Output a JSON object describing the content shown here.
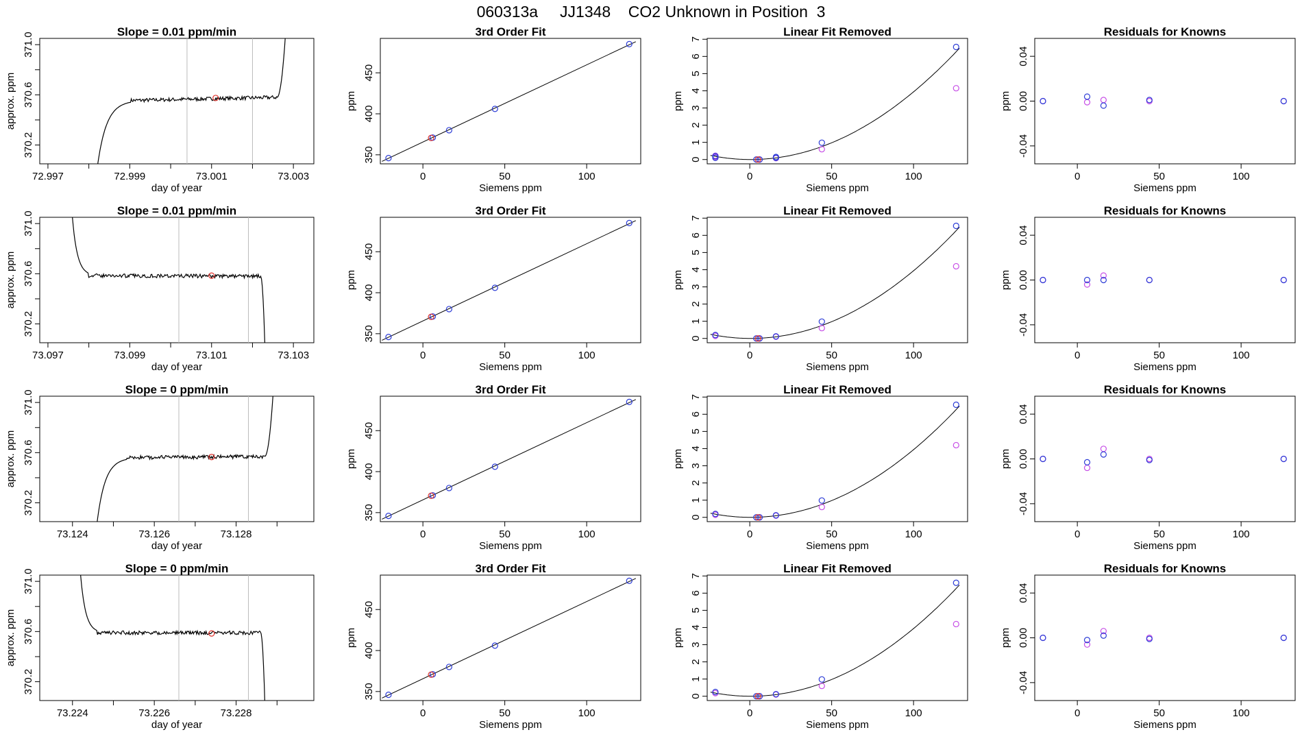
{
  "page": {
    "title": "060313a     JJ1348    CO2 Unknown in Position  3"
  },
  "colors": {
    "known": "#2b3bd6",
    "unknown": "#e0302a",
    "residual_alt": "#c64ce6",
    "line": "#000000",
    "vline": "#bbbbbb"
  },
  "chart_data": [
    {
      "panel": "r1c1",
      "type": "line",
      "title": "Slope =  0.01  ppm/min",
      "xlabel": "day of year",
      "ylabel": "approx. ppm",
      "xlim": [
        72.9968,
        73.0035
      ],
      "ylim": [
        370.05,
        371.05
      ],
      "xticks": [
        72.997,
        72.998,
        72.999,
        73.0,
        73.001,
        73.002,
        73.003
      ],
      "xticklabels": [
        "72.997",
        "",
        "72.999",
        "",
        "73.001",
        "",
        "73.003"
      ],
      "yticks": [
        370.2,
        370.4,
        370.6,
        370.8,
        371.0
      ],
      "yticklabels": [
        "370.2",
        "",
        "370.6",
        "",
        "371.0"
      ],
      "vlines": [
        73.0004,
        73.002
      ],
      "trace": {
        "shape": "rise",
        "x_start": 72.9981,
        "x_settle": 72.999,
        "level": 370.555,
        "level_end": 370.58,
        "x_end": 73.0026,
        "x_exit": 73.0028,
        "exit_y": 371.05
      },
      "marker": {
        "x": 73.0011,
        "y": 370.575,
        "color": "unknown"
      }
    },
    {
      "panel": "r2c1",
      "type": "line",
      "title": "Slope =  0.01  ppm/min",
      "xlabel": "day of year",
      "ylabel": "approx. ppm",
      "xlim": [
        73.0968,
        73.1035
      ],
      "ylim": [
        370.05,
        371.05
      ],
      "xticks": [
        73.097,
        73.098,
        73.099,
        73.1,
        73.101,
        73.102,
        73.103
      ],
      "xticklabels": [
        "73.097",
        "",
        "73.099",
        "",
        "73.101",
        "",
        "73.103"
      ],
      "yticks": [
        370.2,
        370.4,
        370.6,
        370.8,
        371.0
      ],
      "yticklabels": [
        "370.2",
        "",
        "370.6",
        "",
        "371.0"
      ],
      "vlines": [
        73.1002,
        73.1019
      ],
      "trace": {
        "shape": "fall",
        "x_start": 73.0975,
        "x_settle": 73.098,
        "level": 370.585,
        "level_end": 370.58,
        "x_end": 73.1022,
        "x_exit": 73.1023,
        "exit_y": 370.05
      },
      "marker": {
        "x": 73.101,
        "y": 370.585,
        "color": "unknown"
      }
    },
    {
      "panel": "r3c1",
      "type": "line",
      "title": "Slope =  0  ppm/min",
      "xlabel": "day of year",
      "ylabel": "approx. ppm",
      "xlim": [
        73.1232,
        73.1299
      ],
      "ylim": [
        370.05,
        371.05
      ],
      "xticks": [
        73.124,
        73.125,
        73.126,
        73.127,
        73.128,
        73.129
      ],
      "xticklabels": [
        "73.124",
        "",
        "73.126",
        "",
        "73.128",
        ""
      ],
      "yticks": [
        370.2,
        370.4,
        370.6,
        370.8,
        371.0
      ],
      "yticklabels": [
        "370.2",
        "",
        "370.6",
        "",
        "371.0"
      ],
      "vlines": [
        73.1266,
        73.1283
      ],
      "trace": {
        "shape": "rise",
        "x_start": 73.1245,
        "x_settle": 73.1253,
        "level": 370.56,
        "level_end": 370.57,
        "x_end": 73.1287,
        "x_exit": 73.1289,
        "exit_y": 371.05
      },
      "marker": {
        "x": 73.1274,
        "y": 370.565,
        "color": "unknown"
      }
    },
    {
      "panel": "r4c1",
      "type": "line",
      "title": "Slope =  0  ppm/min",
      "xlabel": "day of year",
      "ylabel": "approx. ppm",
      "xlim": [
        73.2232,
        73.2299
      ],
      "ylim": [
        370.05,
        371.05
      ],
      "xticks": [
        73.224,
        73.225,
        73.226,
        73.227,
        73.228,
        73.229
      ],
      "xticklabels": [
        "73.224",
        "",
        "73.226",
        "",
        "73.228",
        ""
      ],
      "yticks": [
        370.2,
        370.4,
        370.6,
        370.8,
        371.0
      ],
      "yticklabels": [
        "370.2",
        "",
        "370.6",
        "",
        "371.0"
      ],
      "vlines": [
        73.2266,
        73.2283
      ],
      "trace": {
        "shape": "fall",
        "x_start": 73.2241,
        "x_settle": 73.2246,
        "level": 370.59,
        "level_end": 370.59,
        "x_end": 73.2286,
        "x_exit": 73.2287,
        "exit_y": 370.05
      },
      "marker": {
        "x": 73.2274,
        "y": 370.585,
        "color": "unknown"
      }
    },
    {
      "panel": "r1c2",
      "type": "scatter",
      "title": "3rd Order Fit",
      "xlabel": "Siemens ppm",
      "ylabel": "ppm",
      "xlim": [
        -26,
        133
      ],
      "ylim": [
        339,
        492
      ],
      "xticks": [
        0,
        50,
        100
      ],
      "yticks": [
        350,
        400,
        450
      ],
      "line": {
        "points": [
          [
            -25,
            342
          ],
          [
            130,
            488
          ]
        ]
      },
      "knowns": [
        [
          -21,
          346
        ],
        [
          6,
          371
        ],
        [
          16,
          380
        ],
        [
          44,
          406
        ],
        [
          126,
          485
        ]
      ],
      "unknowns": [
        [
          5,
          370.6
        ]
      ]
    },
    {
      "panel": "r2c2",
      "type": "scatter",
      "title": "3rd Order Fit",
      "xlabel": "Siemens ppm",
      "ylabel": "ppm",
      "xlim": [
        -26,
        133
      ],
      "ylim": [
        339,
        492
      ],
      "xticks": [
        0,
        50,
        100
      ],
      "yticks": [
        350,
        400,
        450
      ],
      "line": {
        "points": [
          [
            -25,
            342
          ],
          [
            130,
            488
          ]
        ]
      },
      "knowns": [
        [
          -21,
          346
        ],
        [
          6,
          371
        ],
        [
          16,
          380
        ],
        [
          44,
          406
        ],
        [
          126,
          485
        ]
      ],
      "unknowns": [
        [
          5,
          370.6
        ]
      ]
    },
    {
      "panel": "r3c2",
      "type": "scatter",
      "title": "3rd Order Fit",
      "xlabel": "Siemens ppm",
      "ylabel": "ppm",
      "xlim": [
        -26,
        133
      ],
      "ylim": [
        339,
        492
      ],
      "xticks": [
        0,
        50,
        100
      ],
      "yticks": [
        350,
        400,
        450
      ],
      "line": {
        "points": [
          [
            -25,
            342
          ],
          [
            130,
            488
          ]
        ]
      },
      "knowns": [
        [
          -21,
          346
        ],
        [
          6,
          371
        ],
        [
          16,
          380
        ],
        [
          44,
          406
        ],
        [
          126,
          485
        ]
      ],
      "unknowns": [
        [
          5,
          370.6
        ]
      ]
    },
    {
      "panel": "r4c2",
      "type": "scatter",
      "title": "3rd Order Fit",
      "xlabel": "Siemens ppm",
      "ylabel": "ppm",
      "xlim": [
        -26,
        133
      ],
      "ylim": [
        339,
        492
      ],
      "xticks": [
        0,
        50,
        100
      ],
      "yticks": [
        350,
        400,
        450
      ],
      "line": {
        "points": [
          [
            -25,
            342
          ],
          [
            130,
            488
          ]
        ]
      },
      "knowns": [
        [
          -21,
          346
        ],
        [
          6,
          371
        ],
        [
          16,
          380
        ],
        [
          44,
          406
        ],
        [
          126,
          485
        ]
      ],
      "unknowns": [
        [
          5,
          370.6
        ]
      ]
    },
    {
      "panel": "r1c3",
      "type": "scatter",
      "title": "Linear Fit Removed",
      "xlabel": "Siemens ppm",
      "ylabel": "ppm",
      "xlim": [
        -26,
        133
      ],
      "ylim": [
        -0.25,
        7.05
      ],
      "xticks": [
        0,
        50,
        100
      ],
      "yticks": [
        0,
        1,
        2,
        3,
        4,
        5,
        6,
        7
      ],
      "curve": {
        "kind": "quadratic",
        "a": 0.000398,
        "x0": 0.5,
        "xmin": -24,
        "xmax": 128
      },
      "knowns": [
        [
          -21,
          0.2
        ],
        [
          -21,
          0.1
        ],
        [
          4,
          0
        ],
        [
          6,
          0
        ],
        [
          16,
          0.1
        ],
        [
          16,
          0.15
        ],
        [
          44,
          0.98
        ],
        [
          126,
          6.55
        ]
      ],
      "unknowns": [
        [
          5,
          0
        ]
      ],
      "alt": [
        [
          -21,
          0.22
        ],
        [
          -21,
          0.15
        ],
        [
          6,
          0
        ],
        [
          16,
          0.08
        ],
        [
          44,
          0.6
        ],
        [
          126,
          4.15
        ]
      ]
    },
    {
      "panel": "r2c3",
      "type": "scatter",
      "title": "Linear Fit Removed",
      "xlabel": "Siemens ppm",
      "ylabel": "ppm",
      "xlim": [
        -26,
        133
      ],
      "ylim": [
        -0.25,
        7.05
      ],
      "xticks": [
        0,
        50,
        100
      ],
      "yticks": [
        0,
        1,
        2,
        3,
        4,
        5,
        6,
        7
      ],
      "curve": {
        "kind": "quadratic",
        "a": 0.000398,
        "x0": 0.5,
        "xmin": -24,
        "xmax": 128
      },
      "knowns": [
        [
          -21,
          0.2
        ],
        [
          4,
          0
        ],
        [
          6,
          0
        ],
        [
          16,
          0.12
        ],
        [
          44,
          0.98
        ],
        [
          126,
          6.55
        ]
      ],
      "unknowns": [
        [
          5,
          0
        ]
      ],
      "alt": [
        [
          -21,
          0.15
        ],
        [
          6,
          0
        ],
        [
          16,
          0.1
        ],
        [
          44,
          0.6
        ],
        [
          126,
          4.2
        ]
      ]
    },
    {
      "panel": "r3c3",
      "type": "scatter",
      "title": "Linear Fit Removed",
      "xlabel": "Siemens ppm",
      "ylabel": "ppm",
      "xlim": [
        -26,
        133
      ],
      "ylim": [
        -0.25,
        7.05
      ],
      "xticks": [
        0,
        50,
        100
      ],
      "yticks": [
        0,
        1,
        2,
        3,
        4,
        5,
        6,
        7
      ],
      "curve": {
        "kind": "quadratic",
        "a": 0.000398,
        "x0": 0.5,
        "xmin": -24,
        "xmax": 128
      },
      "knowns": [
        [
          -21,
          0.2
        ],
        [
          4,
          0
        ],
        [
          6,
          0
        ],
        [
          16,
          0.12
        ],
        [
          44,
          0.98
        ],
        [
          126,
          6.55
        ]
      ],
      "unknowns": [
        [
          5,
          0
        ]
      ],
      "alt": [
        [
          -21,
          0.15
        ],
        [
          6,
          0
        ],
        [
          16,
          0.1
        ],
        [
          44,
          0.6
        ],
        [
          126,
          4.2
        ]
      ]
    },
    {
      "panel": "r4c3",
      "type": "scatter",
      "title": "Linear Fit Removed",
      "xlabel": "Siemens ppm",
      "ylabel": "ppm",
      "xlim": [
        -26,
        133
      ],
      "ylim": [
        -0.25,
        7.05
      ],
      "xticks": [
        0,
        50,
        100
      ],
      "yticks": [
        0,
        1,
        2,
        3,
        4,
        5,
        6,
        7
      ],
      "curve": {
        "kind": "quadratic",
        "a": 0.000398,
        "x0": 0.5,
        "xmin": -24,
        "xmax": 128
      },
      "knowns": [
        [
          -21,
          0.25
        ],
        [
          4,
          0
        ],
        [
          6,
          0
        ],
        [
          16,
          0.12
        ],
        [
          44,
          0.98
        ],
        [
          126,
          6.6
        ]
      ],
      "unknowns": [
        [
          5,
          0
        ]
      ],
      "alt": [
        [
          -21,
          0.18
        ],
        [
          6,
          0
        ],
        [
          16,
          0.1
        ],
        [
          44,
          0.6
        ],
        [
          126,
          4.2
        ]
      ]
    },
    {
      "panel": "r1c4",
      "type": "scatter",
      "title": "Residuals for Knowns",
      "xlabel": "Siemens ppm",
      "ylabel": "ppm",
      "xlim": [
        -26,
        133
      ],
      "ylim": [
        -0.056,
        0.056
      ],
      "xticks": [
        0,
        50,
        100
      ],
      "yticks": [
        -0.04,
        0.0,
        0.04
      ],
      "yticklabels": [
        "-0.04",
        "0.00",
        "0.04"
      ],
      "knowns": [
        [
          -21,
          0.0
        ],
        [
          6,
          0.004
        ],
        [
          16,
          -0.004
        ],
        [
          44,
          0.001
        ],
        [
          126,
          0.0
        ]
      ],
      "alt": [
        [
          -21,
          0.0
        ],
        [
          6,
          -0.001
        ],
        [
          16,
          0.001
        ],
        [
          44,
          0.0
        ],
        [
          126,
          0.0
        ]
      ]
    },
    {
      "panel": "r2c4",
      "type": "scatter",
      "title": "Residuals for Knowns",
      "xlabel": "Siemens ppm",
      "ylabel": "ppm",
      "xlim": [
        -26,
        133
      ],
      "ylim": [
        -0.056,
        0.056
      ],
      "xticks": [
        0,
        50,
        100
      ],
      "yticks": [
        -0.04,
        0.0,
        0.04
      ],
      "yticklabels": [
        "-0.04",
        "0.00",
        "0.04"
      ],
      "knowns": [
        [
          -21,
          0.0
        ],
        [
          6,
          0.0
        ],
        [
          16,
          0.0
        ],
        [
          44,
          0.0
        ],
        [
          126,
          0.0
        ]
      ],
      "alt": [
        [
          -21,
          0.0
        ],
        [
          6,
          -0.004
        ],
        [
          16,
          0.004
        ],
        [
          44,
          0.0
        ],
        [
          126,
          0.0
        ]
      ]
    },
    {
      "panel": "r3c4",
      "type": "scatter",
      "title": "Residuals for Knowns",
      "xlabel": "Siemens ppm",
      "ylabel": "ppm",
      "xlim": [
        -26,
        133
      ],
      "ylim": [
        -0.056,
        0.056
      ],
      "xticks": [
        0,
        50,
        100
      ],
      "yticks": [
        -0.04,
        0.0,
        0.04
      ],
      "yticklabels": [
        "-0.04",
        "0.00",
        "0.04"
      ],
      "knowns": [
        [
          -21,
          0.0
        ],
        [
          6,
          -0.003
        ],
        [
          16,
          0.004
        ],
        [
          44,
          -0.001
        ],
        [
          126,
          0.0
        ]
      ],
      "alt": [
        [
          -21,
          0.0
        ],
        [
          6,
          -0.008
        ],
        [
          16,
          0.009
        ],
        [
          44,
          0.0
        ],
        [
          126,
          0.0
        ]
      ]
    },
    {
      "panel": "r4c4",
      "type": "scatter",
      "title": "Residuals for Knowns",
      "xlabel": "Siemens ppm",
      "ylabel": "ppm",
      "xlim": [
        -26,
        133
      ],
      "ylim": [
        -0.056,
        0.056
      ],
      "xticks": [
        0,
        50,
        100
      ],
      "yticks": [
        -0.04,
        0.0,
        0.04
      ],
      "yticklabels": [
        "-0.04",
        "0.00",
        "0.04"
      ],
      "knowns": [
        [
          -21,
          0.0
        ],
        [
          6,
          -0.002
        ],
        [
          16,
          0.002
        ],
        [
          44,
          -0.001
        ],
        [
          126,
          0.0
        ]
      ],
      "alt": [
        [
          -21,
          0.0
        ],
        [
          6,
          -0.006
        ],
        [
          16,
          0.006
        ],
        [
          44,
          0.0
        ],
        [
          126,
          0.0
        ]
      ]
    }
  ]
}
